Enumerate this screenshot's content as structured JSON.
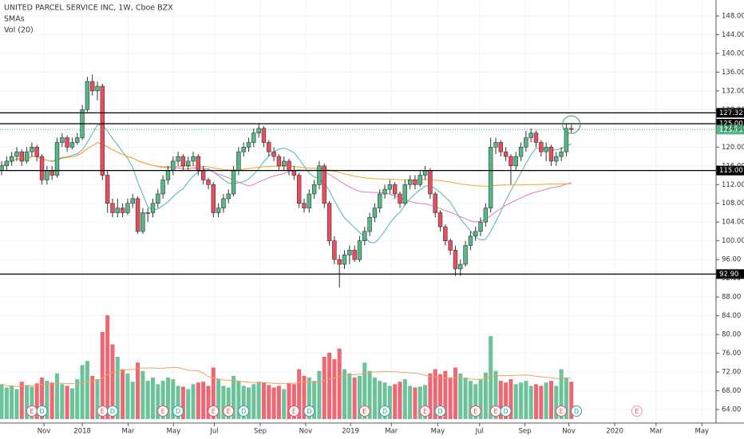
{
  "chart_data": {
    "type": "candlestick",
    "title": "UNITED PARCEL SERVICE INC, 1W, Cboe BZX",
    "indicator_labels": [
      "SMAs",
      "Vol (20)"
    ],
    "up_color": "#53b987",
    "down_color": "#eb4d5c",
    "ylim": [
      57.7,
      151.4
    ],
    "yticks": [
      {
        "value": 64,
        "label": "64.00"
      },
      {
        "value": 68,
        "label": "68.00"
      },
      {
        "value": 72,
        "label": "72.00"
      },
      {
        "value": 76,
        "label": "76.00"
      },
      {
        "value": 80,
        "label": "80.00"
      },
      {
        "value": 84,
        "label": "84.00"
      },
      {
        "value": 88,
        "label": "88.00"
      },
      {
        "value": 92,
        "label": "92.00"
      },
      {
        "value": 96,
        "label": "96.00"
      },
      {
        "value": 100,
        "label": "100.00"
      },
      {
        "value": 104,
        "label": "104.00"
      },
      {
        "value": 108,
        "label": "108.00"
      },
      {
        "value": 112,
        "label": "112.00"
      },
      {
        "value": 116,
        "label": "116.00"
      },
      {
        "value": 120,
        "label": "120.00"
      },
      {
        "value": 124,
        "label": "124.00"
      },
      {
        "value": 128,
        "label": "128.00"
      },
      {
        "value": 132,
        "label": "132.00"
      },
      {
        "value": 136,
        "label": "136.00"
      },
      {
        "value": 140,
        "label": "140.00"
      },
      {
        "value": 144,
        "label": "144.00"
      },
      {
        "value": 148,
        "label": "148.00"
      }
    ],
    "xlim": [
      -0.32,
      141.7
    ],
    "xticks": [
      {
        "value": 8.4,
        "label": "Nov"
      },
      {
        "value": 16,
        "label": "2018"
      },
      {
        "value": 25.1,
        "label": "Mar"
      },
      {
        "value": 34.1,
        "label": "May"
      },
      {
        "value": 42.2,
        "label": "Jul"
      },
      {
        "value": 51.3,
        "label": "Sep"
      },
      {
        "value": 60.3,
        "label": "Nov"
      },
      {
        "value": 69.2,
        "label": "2019"
      },
      {
        "value": 77.3,
        "label": "Mar"
      },
      {
        "value": 86.5,
        "label": "May"
      },
      {
        "value": 94.8,
        "label": "Jul"
      },
      {
        "value": 103.8,
        "label": "Sep"
      },
      {
        "value": 112.5,
        "label": "Nov"
      },
      {
        "value": 121.6,
        "label": "2020"
      },
      {
        "value": 129.8,
        "label": "Mar"
      },
      {
        "value": 138.9,
        "label": "May"
      }
    ],
    "grid": true,
    "levels": [
      {
        "value": 127.32,
        "label": "127.32"
      },
      {
        "value": 125,
        "label": "125.00"
      },
      {
        "value": 115,
        "label": "115.00"
      },
      {
        "value": 92.9,
        "label": "92.90"
      }
    ],
    "last_price": {
      "value": 123.73,
      "label": "123.73"
    },
    "sma": [
      {
        "period": 10,
        "color": "#4db6ac"
      },
      {
        "period": 30,
        "color": "#e57bb8"
      },
      {
        "period": 100,
        "color": "#f5a623"
      }
    ],
    "volume_ma": {
      "period": 20,
      "color": "#f5a05a"
    },
    "events": [
      {
        "label": "E",
        "index": 6
      },
      {
        "label": "D",
        "index": 8
      },
      {
        "label": "E",
        "index": 20
      },
      {
        "label": "D",
        "index": 22
      },
      {
        "label": "E",
        "index": 32
      },
      {
        "label": "D",
        "index": 35
      },
      {
        "label": "E",
        "index": 42
      },
      {
        "label": "E",
        "index": 45
      },
      {
        "label": "D",
        "index": 48
      },
      {
        "label": "E",
        "index": 58
      },
      {
        "label": "D",
        "index": 61
      },
      {
        "label": "E",
        "index": 72
      },
      {
        "label": "D",
        "index": 76
      },
      {
        "label": "E",
        "index": 84
      },
      {
        "label": "D",
        "index": 87
      },
      {
        "label": "E",
        "index": 94
      },
      {
        "label": "E",
        "index": 98
      },
      {
        "label": "D",
        "index": 100
      },
      {
        "label": "E",
        "index": 111
      },
      {
        "label": "D",
        "index": 114
      },
      {
        "label": "E",
        "index": 126
      }
    ],
    "candles": [
      [
        115,
        117,
        114,
        116,
        4.2
      ],
      [
        116,
        118,
        115,
        117,
        3.8
      ],
      [
        117,
        119,
        116,
        118,
        4.0
      ],
      [
        118,
        120,
        117,
        119,
        3.6
      ],
      [
        119,
        119.5,
        116,
        117,
        4.5
      ],
      [
        117,
        120,
        116.5,
        119,
        4.1
      ],
      [
        119,
        121,
        118,
        120,
        3.9
      ],
      [
        120,
        120.5,
        117,
        118,
        4.3
      ],
      [
        118,
        118.5,
        112,
        113,
        5.0
      ],
      [
        113,
        116,
        112,
        115,
        4.6
      ],
      [
        115,
        116,
        113,
        114,
        4.4
      ],
      [
        114,
        122,
        113.5,
        121,
        5.5
      ],
      [
        121,
        123,
        120,
        122,
        4.2
      ],
      [
        122,
        122.5,
        119,
        120,
        4.0
      ],
      [
        120,
        122,
        119.5,
        121,
        3.7
      ],
      [
        121,
        123,
        120.5,
        122,
        4.8
      ],
      [
        122,
        129,
        121.5,
        128,
        6.5
      ],
      [
        128,
        135,
        127.5,
        134,
        7.0
      ],
      [
        134,
        135.5,
        131,
        132,
        5.2
      ],
      [
        132,
        134,
        130,
        133,
        4.8
      ],
      [
        133,
        133.5,
        113,
        114,
        10.5
      ],
      [
        114,
        115,
        106,
        108,
        12.5
      ],
      [
        108,
        109,
        105,
        106,
        9.0
      ],
      [
        106,
        109,
        105,
        107,
        7.5
      ],
      [
        107,
        108,
        105,
        106,
        6.0
      ],
      [
        106,
        109,
        105.5,
        108,
        5.5
      ],
      [
        108,
        110,
        107,
        109,
        4.5
      ],
      [
        109,
        109.5,
        101.5,
        102,
        6.8
      ],
      [
        102,
        107,
        101.5,
        106,
        5.8
      ],
      [
        106,
        107,
        104,
        106,
        4.6
      ],
      [
        106,
        109,
        105,
        108,
        5.0
      ],
      [
        108,
        111,
        107,
        110,
        4.2
      ],
      [
        110,
        114,
        109,
        113,
        4.6
      ],
      [
        113,
        116,
        112,
        115,
        5.0
      ],
      [
        115,
        118,
        114,
        117,
        4.8
      ],
      [
        117,
        119,
        116,
        118,
        4.0
      ],
      [
        118,
        118.5,
        115,
        116,
        3.9
      ],
      [
        116,
        118,
        115,
        117,
        3.6
      ],
      [
        117,
        119,
        116,
        118,
        4.2
      ],
      [
        118,
        118.5,
        114,
        115,
        4.4
      ],
      [
        115,
        116,
        112,
        113,
        4.5
      ],
      [
        113,
        113.5,
        111,
        112,
        4.0
      ],
      [
        112,
        112.5,
        105,
        106,
        6.2
      ],
      [
        106,
        108,
        105,
        107,
        4.8
      ],
      [
        107,
        110,
        106,
        109,
        4.0
      ],
      [
        109,
        111,
        108,
        110,
        3.8
      ],
      [
        110,
        116,
        109.5,
        115,
        5.2
      ],
      [
        115,
        120,
        114,
        119,
        4.6
      ],
      [
        119,
        121,
        118,
        120,
        4.0
      ],
      [
        120,
        122,
        119,
        121,
        3.8
      ],
      [
        121,
        124,
        120,
        123,
        4.2
      ],
      [
        123,
        125,
        122,
        124,
        4.5
      ],
      [
        124,
        124.5,
        120,
        121,
        4.4
      ],
      [
        121,
        121.5,
        118,
        119,
        4.1
      ],
      [
        119,
        120,
        117,
        118,
        3.8
      ],
      [
        118,
        118.5,
        115,
        116,
        4.0
      ],
      [
        116,
        118,
        115,
        117,
        3.6
      ],
      [
        117,
        117.5,
        114,
        115,
        4.3
      ],
      [
        115,
        116,
        113,
        114,
        4.2
      ],
      [
        114,
        114.5,
        107,
        108,
        6.0
      ],
      [
        108,
        109,
        106,
        107,
        5.2
      ],
      [
        107,
        111,
        106,
        110,
        5.0
      ],
      [
        110,
        113,
        109,
        112,
        4.6
      ],
      [
        112,
        117,
        111,
        116,
        5.8
      ],
      [
        116,
        116.5,
        107,
        108,
        7.5
      ],
      [
        108,
        108.5,
        99,
        100,
        8.0
      ],
      [
        100,
        101,
        95,
        96,
        7.2
      ],
      [
        96,
        97,
        90,
        95,
        8.5
      ],
      [
        95,
        98,
        94,
        97,
        6.0
      ],
      [
        97,
        99,
        95,
        98,
        5.5
      ],
      [
        98,
        99,
        95.5,
        96,
        5.0
      ],
      [
        96,
        101,
        95.5,
        100,
        5.2
      ],
      [
        100,
        103,
        99,
        102,
        6.8
      ],
      [
        102,
        106,
        101,
        105,
        5.8
      ],
      [
        105,
        108,
        104,
        107,
        5.0
      ],
      [
        107,
        111,
        106,
        110,
        4.6
      ],
      [
        110,
        112,
        109,
        111,
        4.4
      ],
      [
        111,
        113,
        110,
        112,
        4.0
      ],
      [
        112,
        112.5,
        109,
        110,
        4.2
      ],
      [
        110,
        110.5,
        107,
        108,
        4.5
      ],
      [
        108,
        113,
        107.5,
        112,
        4.8
      ],
      [
        112,
        114,
        111,
        113,
        4.0
      ],
      [
        113,
        114,
        111,
        112,
        3.8
      ],
      [
        112,
        115,
        111.5,
        114,
        3.9
      ],
      [
        114,
        116,
        113,
        115,
        4.1
      ],
      [
        115,
        115.5,
        109,
        110,
        5.5
      ],
      [
        110,
        110.5,
        105,
        106,
        6.0
      ],
      [
        106,
        106.5,
        102,
        103,
        5.4
      ],
      [
        103,
        103.5,
        99,
        100,
        5.8
      ],
      [
        100,
        100.5,
        97,
        98,
        5.0
      ],
      [
        98,
        99,
        92.5,
        94,
        6.2
      ],
      [
        94,
        96,
        92.5,
        95,
        5.5
      ],
      [
        95,
        100,
        94.5,
        99,
        5.0
      ],
      [
        99,
        102,
        98,
        101,
        4.6
      ],
      [
        101,
        103,
        100,
        102,
        4.2
      ],
      [
        102,
        105,
        101,
        104,
        4.8
      ],
      [
        104,
        108,
        103,
        107,
        5.6
      ],
      [
        107,
        122,
        106,
        120,
        10.0
      ],
      [
        120,
        122,
        118.5,
        121,
        5.8
      ],
      [
        121,
        121.5,
        118,
        119,
        4.6
      ],
      [
        119,
        120,
        117,
        118,
        4.4
      ],
      [
        118,
        118.5,
        112,
        116,
        4.8
      ],
      [
        116,
        119,
        115,
        118,
        4.2
      ],
      [
        118,
        121,
        117,
        120,
        4.4
      ],
      [
        120,
        123.5,
        119,
        122,
        4.6
      ],
      [
        122,
        124,
        121,
        123,
        4.0
      ],
      [
        123,
        123.5,
        120,
        121,
        4.2
      ],
      [
        121,
        121.5,
        118,
        119,
        4.0
      ],
      [
        119,
        121,
        117,
        120,
        4.4
      ],
      [
        120,
        120.5,
        116,
        117,
        4.6
      ],
      [
        117,
        119,
        116,
        118,
        4.0
      ],
      [
        118,
        120,
        117,
        119,
        6.0
      ],
      [
        119,
        125,
        118,
        124,
        5.0
      ],
      [
        124,
        124.8,
        123,
        123.73,
        4.5
      ]
    ]
  }
}
